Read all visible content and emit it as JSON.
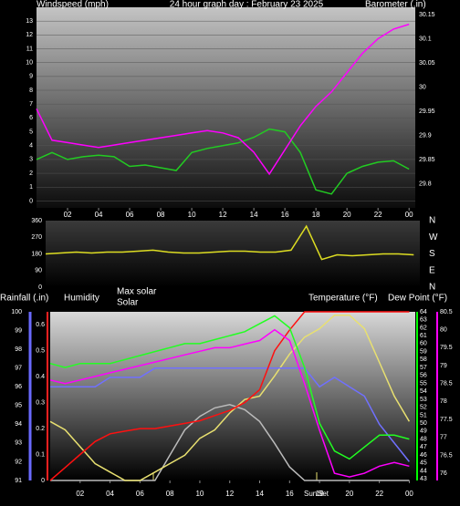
{
  "chart_data": [
    {
      "type": "line",
      "title": "24 hour graph day : February 23 2025",
      "grid": true,
      "x": [
        0,
        1,
        2,
        3,
        4,
        5,
        6,
        7,
        8,
        9,
        10,
        11,
        12,
        13,
        14,
        15,
        16,
        17,
        18,
        19,
        20,
        21,
        22,
        23,
        24
      ],
      "xlim": [
        0,
        24.4
      ],
      "xticks": [
        {
          "value": 2,
          "label": "02"
        },
        {
          "value": 4,
          "label": "04"
        },
        {
          "value": 6,
          "label": "06"
        },
        {
          "value": 8,
          "label": "08"
        },
        10,
        12,
        14,
        16,
        18,
        20,
        22,
        {
          "value": 24,
          "label": "00"
        }
      ],
      "axes": [
        {
          "title": "Windspeed (mph)",
          "color": "#00ff00",
          "ylim": [
            -0.5,
            14
          ],
          "yticks": [
            0,
            1,
            2,
            3,
            4,
            5,
            6,
            7,
            8,
            9,
            10,
            11,
            12,
            13
          ]
        },
        {
          "title": "Barometer (.in)",
          "color": "#ff00ff",
          "ylim": [
            29.75,
            30.165
          ],
          "yticks": [
            29.8,
            29.85,
            29.9,
            29.95,
            30,
            30.05,
            30.1,
            30.15
          ]
        }
      ],
      "series": [
        {
          "axis": 0,
          "color": "#22cc22",
          "values": [
            3,
            3.5,
            3,
            3.2,
            3.3,
            3.2,
            2.5,
            2.6,
            2.4,
            2.2,
            3.5,
            3.8,
            4,
            4.2,
            4.6,
            5.2,
            5,
            3.5,
            0.8,
            0.5,
            2,
            2.5,
            2.8,
            2.9,
            2.3
          ]
        },
        {
          "axis": 1,
          "color": "#ff00ff",
          "values": [
            29.955,
            29.89,
            29.885,
            29.88,
            29.875,
            29.88,
            29.885,
            29.89,
            29.895,
            29.9,
            29.905,
            29.91,
            29.905,
            29.895,
            29.865,
            29.82,
            29.87,
            29.92,
            29.96,
            29.99,
            30.03,
            30.07,
            30.1,
            30.12,
            30.13
          ]
        }
      ]
    },
    {
      "type": "line",
      "grid": false,
      "x": [
        0,
        1,
        2,
        3,
        4,
        5,
        6,
        7,
        8,
        9,
        10,
        11,
        12,
        13,
        14,
        15,
        16,
        17,
        18,
        19,
        20,
        21,
        22,
        23,
        24
      ],
      "xlim": [
        0,
        24.4
      ],
      "axes": [
        {
          "color": "#ffff00",
          "ylim": [
            0,
            360
          ],
          "yticks": [
            0,
            90,
            180,
            270,
            360
          ]
        }
      ],
      "direction_labels": [
        "N",
        "E",
        "S",
        "W",
        "N"
      ],
      "series": [
        {
          "axis": 0,
          "color": "#dddd22",
          "values": [
            180,
            185,
            190,
            185,
            190,
            190,
            195,
            200,
            190,
            185,
            185,
            190,
            195,
            195,
            190,
            190,
            200,
            330,
            150,
            175,
            170,
            175,
            180,
            180,
            175
          ]
        }
      ]
    },
    {
      "type": "line",
      "grid": false,
      "x": [
        0,
        1,
        2,
        3,
        4,
        5,
        6,
        7,
        8,
        9,
        10,
        11,
        12,
        13,
        14,
        15,
        16,
        17,
        18,
        19,
        20,
        21,
        22,
        23,
        24
      ],
      "xlim": [
        0,
        24.4
      ],
      "xticks": [
        {
          "value": 2,
          "label": "02"
        },
        {
          "value": 4,
          "label": "04"
        },
        {
          "value": 6,
          "label": "06"
        },
        {
          "value": 8,
          "label": "08"
        },
        10,
        12,
        14,
        16,
        18,
        20,
        22,
        {
          "value": 24,
          "label": "00"
        }
      ],
      "annotations": [
        "Sun",
        "Set"
      ],
      "axes": [
        {
          "title": "Rainfall (.in)",
          "color": "#ff2020",
          "ylim": [
            0,
            0.65
          ],
          "yticks": [
            0,
            0.1,
            0.2,
            0.3,
            0.4,
            0.5,
            0.6
          ]
        },
        {
          "title": "Humidity",
          "color": "#6a6aff",
          "ylim": [
            91,
            100
          ],
          "yticks": [
            91,
            92,
            93,
            94,
            95,
            96,
            97,
            98,
            99,
            100
          ]
        },
        {
          "title": "Temperature (°F)",
          "color": "#00ff00",
          "ylim": [
            42.8,
            64
          ],
          "yticks": [
            43,
            44,
            45,
            46,
            47,
            48,
            49,
            50,
            51,
            52,
            53,
            54,
            55,
            56,
            57,
            58,
            59,
            60,
            61,
            62,
            63,
            64
          ]
        },
        {
          "title": "Dew Point (°F)",
          "color": "#ff00ff",
          "ylim": [
            75.8,
            80.5
          ],
          "yticks": [
            76,
            76.5,
            77,
            77.5,
            78,
            78.5,
            79,
            79.5,
            80,
            80.5
          ]
        },
        {
          "ylim": [
            0,
            100
          ]
        }
      ],
      "series": [
        {
          "axis": 4,
          "name": "Max solar",
          "color": "#bbbbbb",
          "values": [
            0,
            0,
            0,
            0,
            0,
            0,
            0,
            0,
            15,
            30,
            38,
            43,
            45,
            42,
            35,
            22,
            8,
            0,
            0,
            0,
            0,
            0,
            0,
            0,
            0
          ]
        },
        {
          "axis": 4,
          "name": "Solar",
          "color": "#e8e070",
          "values": [
            35,
            30,
            20,
            10,
            5,
            0,
            0,
            5,
            10,
            15,
            25,
            30,
            40,
            48,
            50,
            62,
            75,
            85,
            90,
            98,
            98,
            90,
            70,
            50,
            35
          ]
        },
        {
          "axis": 1,
          "color": "#7070ff",
          "values": [
            96,
            96,
            96,
            96,
            96.5,
            96.5,
            96.5,
            97,
            97,
            97,
            97,
            97,
            97,
            97,
            97,
            97,
            97,
            97,
            96,
            96.5,
            96,
            95.5,
            94,
            93,
            92
          ]
        },
        {
          "axis": 0,
          "color": "#ff1010",
          "values": [
            0,
            0.05,
            0.1,
            0.15,
            0.18,
            0.19,
            0.2,
            0.2,
            0.21,
            0.22,
            0.23,
            0.25,
            0.27,
            0.3,
            0.35,
            0.5,
            0.58,
            0.65,
            0.65,
            0.65,
            0.65,
            0.65,
            0.65,
            0.65,
            0.65
          ]
        },
        {
          "axis": 2,
          "color": "#22ff22",
          "values": [
            57.5,
            57,
            57.5,
            57.5,
            57.5,
            58,
            58.5,
            59,
            59.5,
            60,
            60,
            60.5,
            61,
            61.5,
            62.5,
            63.5,
            62,
            57,
            50,
            46.5,
            45.5,
            47,
            48.5,
            48.5,
            48
          ]
        },
        {
          "axis": 3,
          "color": "#ff00ff",
          "values": [
            78.6,
            78.5,
            78.6,
            78.7,
            78.8,
            78.9,
            79,
            79.1,
            79.2,
            79.3,
            79.4,
            79.5,
            79.5,
            79.6,
            79.7,
            80,
            79.7,
            78.5,
            77.2,
            76,
            75.9,
            76,
            76.2,
            76.3,
            76.2
          ]
        }
      ]
    }
  ]
}
